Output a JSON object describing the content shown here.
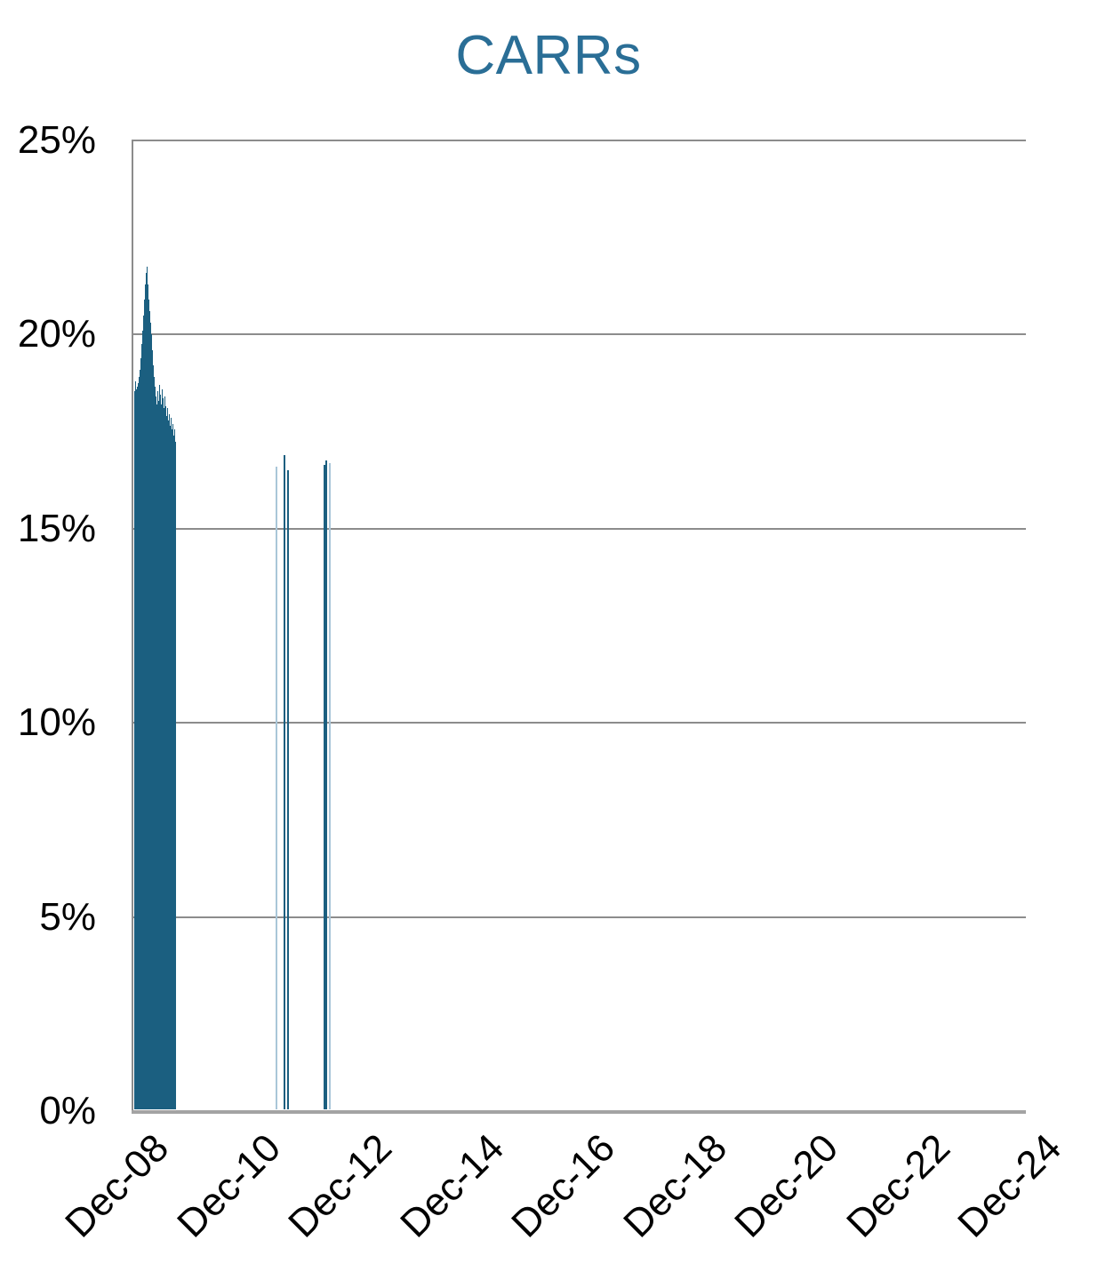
{
  "page": {
    "background": "#ffffff"
  },
  "chart_data": {
    "type": "bar",
    "title": "CARRs",
    "xlabel": "",
    "ylabel": "",
    "ylim": [
      0,
      25
    ],
    "grid": true,
    "legend": "none",
    "colors": {
      "title": "#2A6E96",
      "bar": "#1B5F80",
      "bar_light": "#A9C6D8",
      "grid": "#8C8C8C",
      "axis": "#A3A3A3",
      "text": "#000000"
    },
    "y_ticks": [
      {
        "label": "25%",
        "value": 25
      },
      {
        "label": "20%",
        "value": 20
      },
      {
        "label": "15%",
        "value": 15
      },
      {
        "label": "10%",
        "value": 10
      },
      {
        "label": "5%",
        "value": 5
      },
      {
        "label": "0%",
        "value": 0
      }
    ],
    "x_axis": {
      "unit": "years_after_Dec_2008",
      "range": [
        0,
        16
      ],
      "ticks": [
        {
          "label": "Dec-08",
          "year": 0
        },
        {
          "label": "Dec-10",
          "year": 2
        },
        {
          "label": "Dec-12",
          "year": 4
        },
        {
          "label": "Dec-14",
          "year": 6
        },
        {
          "label": "Dec-16",
          "year": 8
        },
        {
          "label": "Dec-18",
          "year": 10
        },
        {
          "label": "Dec-20",
          "year": 12
        },
        {
          "label": "Dec-22",
          "year": 14
        },
        {
          "label": "Dec-24",
          "year": 16
        }
      ]
    },
    "main_cluster": {
      "note": "dense run of narrow bars from ~Dec-08 to ~Sep-09, peak ~21.75% in early 2009",
      "start_year": 0.01,
      "step_years": 0.0159,
      "values_pct": [
        18.55,
        18.8,
        18.6,
        18.65,
        18.75,
        18.9,
        19.1,
        19.4,
        19.75,
        20.1,
        20.5,
        20.9,
        21.3,
        21.6,
        21.75,
        21.3,
        20.9,
        20.6,
        20.3,
        20.0,
        19.6,
        19.2,
        18.9,
        18.65,
        18.4,
        18.2,
        18.55,
        18.3,
        18.7,
        18.45,
        18.2,
        18.6,
        18.35,
        18.1,
        18.4,
        18.15,
        17.9,
        18.1,
        17.8,
        17.95,
        17.65,
        17.85,
        17.55,
        17.7,
        17.4,
        17.55,
        17.25
      ]
    },
    "isolated_bars": [
      {
        "year": 2.55,
        "value_pct": 16.6,
        "shade": "light"
      },
      {
        "year": 2.7,
        "value_pct": 16.9,
        "shade": "dark"
      },
      {
        "year": 2.75,
        "value_pct": 16.5,
        "shade": "dark"
      },
      {
        "year": 3.41,
        "value_pct": 16.65,
        "shade": "dark"
      },
      {
        "year": 3.45,
        "value_pct": 16.75,
        "shade": "dark"
      },
      {
        "year": 3.5,
        "value_pct": 16.7,
        "shade": "light"
      }
    ]
  }
}
